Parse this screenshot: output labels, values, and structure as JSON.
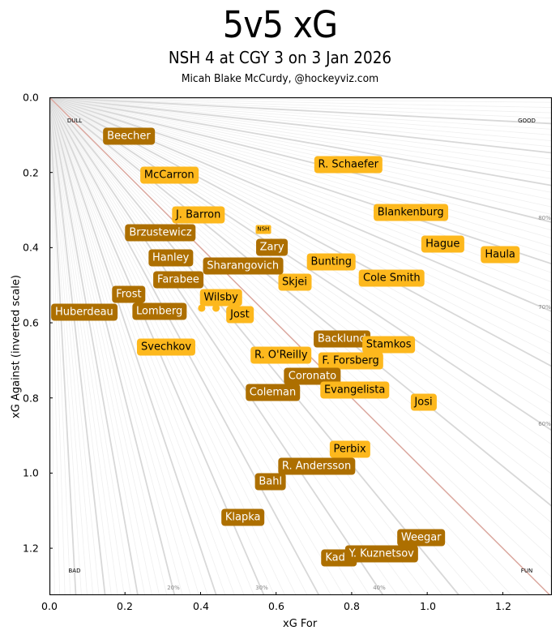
{
  "header": {
    "title": "5v5 xG",
    "subtitle": "NSH 4 at CGY 3 on 3 Jan 2026",
    "credit": "Micah Blake McCurdy, @hockeyviz.com"
  },
  "chart_data": {
    "type": "scatter",
    "title": "5v5 xG",
    "subtitle": "NSH 4 at CGY 3 on 3 Jan 2026",
    "xlabel": "xG For",
    "ylabel": "xG Against (inverted scale)",
    "xlim": [
      0,
      1.33
    ],
    "ylim": [
      1.325,
      0
    ],
    "xticks": [
      "0.0",
      "0.2",
      "0.4",
      "0.6",
      "0.8",
      "1.0",
      "1.2"
    ],
    "yticks": [
      "0.0",
      "0.2",
      "0.4",
      "0.6",
      "0.8",
      "1.0",
      "1.2"
    ],
    "corner_labels": {
      "top_left": "DULL",
      "top_right": "GOOD",
      "bottom_left": "BAD",
      "bottom_right": "FUN"
    },
    "ray_labels": {
      "bottom": [
        "20%",
        "30%",
        "40%"
      ],
      "right": [
        "60%",
        "70%",
        "80%"
      ]
    },
    "colors": {
      "CGY": "#ad6f00",
      "NSH": "#fdb81d",
      "even_line": "#dba89f",
      "ray": "#d8d8d8"
    },
    "team_label": {
      "text": "NSH",
      "team": "NSH",
      "x": 0.566,
      "y": 0.352
    },
    "players": [
      {
        "name": "Beecher",
        "team": "CGY",
        "x": 0.21,
        "y": 0.104
      },
      {
        "name": "McCarron",
        "team": "NSH",
        "x": 0.317,
        "y": 0.207
      },
      {
        "name": "R. Schaefer",
        "team": "NSH",
        "x": 0.791,
        "y": 0.179
      },
      {
        "name": "J. Barron",
        "team": "NSH",
        "x": 0.394,
        "y": 0.313
      },
      {
        "name": "Blankenburg",
        "team": "NSH",
        "x": 0.956,
        "y": 0.306
      },
      {
        "name": "Brzustewicz",
        "team": "CGY",
        "x": 0.294,
        "y": 0.36
      },
      {
        "name": "Hague",
        "team": "NSH",
        "x": 1.041,
        "y": 0.391
      },
      {
        "name": "Haula",
        "team": "NSH",
        "x": 1.193,
        "y": 0.419
      },
      {
        "name": "Zary",
        "team": "CGY",
        "x": 0.589,
        "y": 0.399
      },
      {
        "name": "Hanley",
        "team": "CGY",
        "x": 0.321,
        "y": 0.427
      },
      {
        "name": "Bunting",
        "team": "NSH",
        "x": 0.746,
        "y": 0.438
      },
      {
        "name": "Skjei",
        "team": "NSH",
        "x": 0.649,
        "y": 0.492
      },
      {
        "name": "Cole Smith",
        "team": "NSH",
        "x": 0.906,
        "y": 0.481
      },
      {
        "name": "Farabee",
        "team": "CGY",
        "x": 0.341,
        "y": 0.486
      },
      {
        "name": "Sharangovich",
        "team": "CGY",
        "x": 0.512,
        "y": 0.449
      },
      {
        "name": "Frost",
        "team": "CGY",
        "x": 0.21,
        "y": 0.524
      },
      {
        "name": "Lomberg",
        "team": "CGY",
        "x": 0.291,
        "y": 0.57
      },
      {
        "name": "Huberdeau",
        "team": "CGY",
        "x": 0.092,
        "y": 0.572
      },
      {
        "name": "Wilsby",
        "team": "NSH",
        "x": 0.454,
        "y": 0.533
      },
      {
        "name": "Jost",
        "team": "NSH",
        "x": 0.504,
        "y": 0.578
      },
      {
        "name": "Svechkov",
        "team": "NSH",
        "x": 0.309,
        "y": 0.665
      },
      {
        "name": "Backlund",
        "team": "CGY",
        "x": 0.774,
        "y": 0.643
      },
      {
        "name": "R. O'Reilly",
        "team": "NSH",
        "x": 0.613,
        "y": 0.686
      },
      {
        "name": "Stamkos",
        "team": "NSH",
        "x": 0.898,
        "y": 0.658
      },
      {
        "name": "F. Forsberg",
        "team": "NSH",
        "x": 0.797,
        "y": 0.701
      },
      {
        "name": "Coronato",
        "team": "CGY",
        "x": 0.696,
        "y": 0.742
      },
      {
        "name": "Coleman",
        "team": "CGY",
        "x": 0.591,
        "y": 0.786
      },
      {
        "name": "Evangelista",
        "team": "NSH",
        "x": 0.808,
        "y": 0.779
      },
      {
        "name": "Josi",
        "team": "NSH",
        "x": 0.99,
        "y": 0.812
      },
      {
        "name": "Perbix",
        "team": "NSH",
        "x": 0.795,
        "y": 0.937
      },
      {
        "name": "R. Andersson",
        "team": "CGY",
        "x": 0.707,
        "y": 0.982
      },
      {
        "name": "Bahl",
        "team": "CGY",
        "x": 0.585,
        "y": 1.023
      },
      {
        "name": "Klapka",
        "team": "CGY",
        "x": 0.512,
        "y": 1.118
      },
      {
        "name": "Weegar",
        "team": "CGY",
        "x": 0.984,
        "y": 1.172
      },
      {
        "name": "Kadri",
        "team": "CGY",
        "x": 0.766,
        "y": 1.226
      },
      {
        "name": "Y. Kuznetsov",
        "team": "CGY",
        "x": 0.879,
        "y": 1.215
      }
    ],
    "markers": [
      {
        "team": "NSH",
        "x": 0.403,
        "y": 0.561
      },
      {
        "team": "NSH",
        "x": 0.441,
        "y": 0.561
      },
      {
        "team": "NSH",
        "x": 0.718,
        "y": 0.978
      }
    ]
  }
}
